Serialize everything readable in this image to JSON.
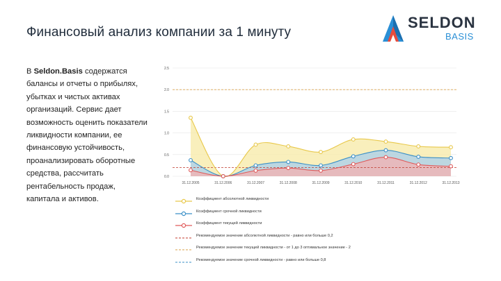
{
  "header": {
    "title": "Финансовый анализ компании за 1 минуту"
  },
  "logo": {
    "word": "SELDON",
    "sub": "BASIS",
    "colors": {
      "blue": "#2a8fd6",
      "red": "#e84c3d",
      "dark": "#2a3340"
    }
  },
  "description": {
    "prefix": "В ",
    "brand": "Seldon.Basis",
    "body": " содержатся балансы и отчеты о прибылях, убытках и чистых активах организаций. Сервис дает возможность оценить показатели ликвидности компании, ее финансовую устойчивость, проанализировать оборотные средства, рассчитать рентабельность продаж, капитала и активов."
  },
  "chart_data": {
    "type": "area",
    "categories": [
      "31.12.2005",
      "31.12.2006",
      "31.12.2007",
      "31.12.2008",
      "31.12.2009",
      "31.12.2010",
      "31.12.2011",
      "31.12.2012",
      "31.12.2013"
    ],
    "ylim": [
      0,
      2.5
    ],
    "yticks": [
      "0.0",
      "0.5",
      "1.0",
      "1.5",
      "2.0",
      "2.5"
    ],
    "series": [
      {
        "name": "Коэффициент абсолютной ликвидности",
        "color": "#e8c84a",
        "fill": "#f7e9a6",
        "values": [
          1.35,
          0.0,
          0.73,
          0.69,
          0.56,
          0.85,
          0.8,
          0.69,
          0.67
        ]
      },
      {
        "name": "Коэффициент срочной ликвидности",
        "color": "#3a8fc7",
        "fill": "#a7cfee",
        "values": [
          0.37,
          0.0,
          0.25,
          0.33,
          0.25,
          0.46,
          0.6,
          0.45,
          0.42
        ]
      },
      {
        "name": "Коэффициент текущей ликвидности",
        "color": "#e05a5a",
        "fill": "#f4b0b0",
        "values": [
          0.14,
          0.0,
          0.13,
          0.19,
          0.13,
          0.28,
          0.44,
          0.27,
          0.23
        ]
      }
    ],
    "reference_lines": [
      {
        "name": "Рекомендуемое значение абсолютной ликвидности - равно или больше 0,2",
        "value": 0.2,
        "color": "#c0392b"
      },
      {
        "name": "Рекомендуемое значение текущей ликвидности - от 1 до 3 оптимальное значение - 2",
        "value": 2.0,
        "color": "#d9a24a"
      },
      {
        "name": "Рекомендуемое значение срочной ликвидности - равно или больше 0,8",
        "value": 0.8,
        "color": "#3a8fc7"
      }
    ]
  }
}
